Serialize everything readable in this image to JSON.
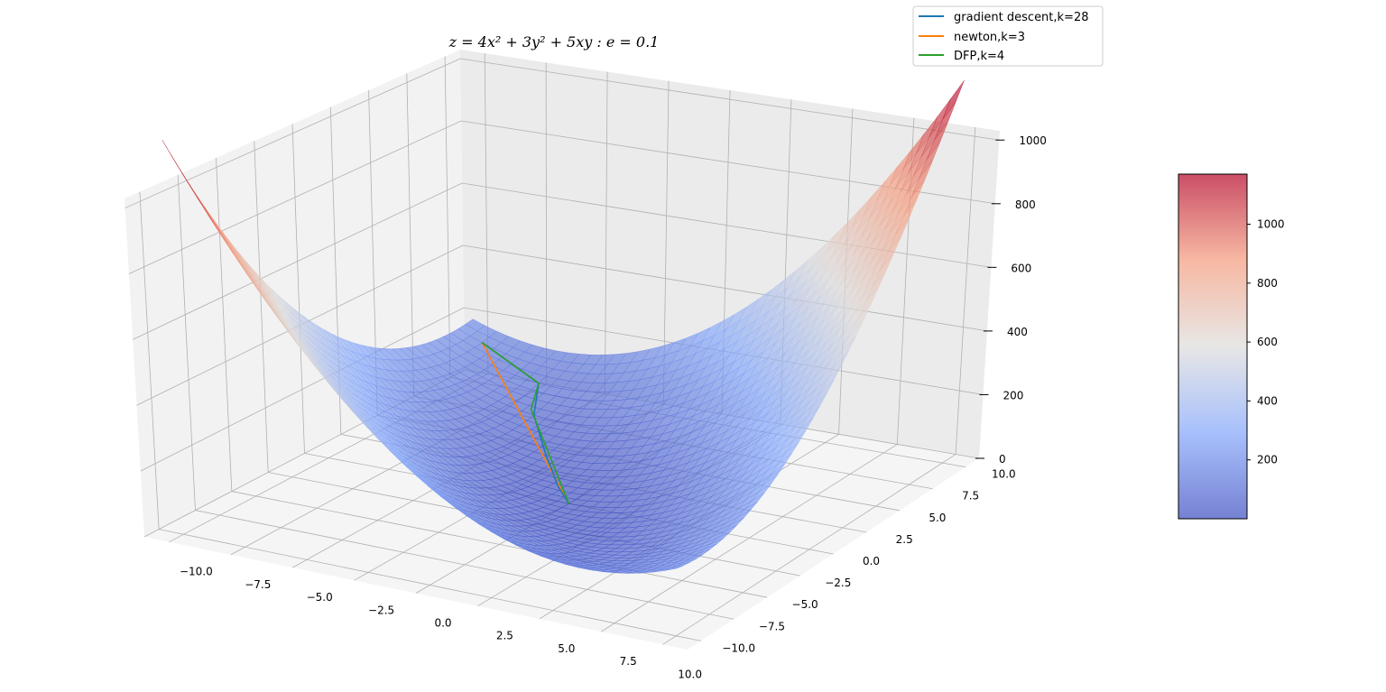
{
  "chart_data": {
    "type": "surface3d",
    "title": "z = 4x² + 3y² + 5xy : e = 0.1",
    "function": "z = 4x^2 + 3y^2 + 5xy",
    "x_range": [
      -10,
      10
    ],
    "y_range": [
      -10,
      10
    ],
    "xlim": [
      -11,
      11
    ],
    "ylim": [
      -11,
      11
    ],
    "zlim": [
      0,
      1029
    ],
    "x_ticks": [
      "−10.0",
      "−7.5",
      "−5.0",
      "−2.5",
      "0.0",
      "2.5",
      "5.0",
      "7.5",
      "10.0"
    ],
    "y_ticks": [
      "−10.0",
      "−7.5",
      "−5.0",
      "−2.5",
      "0.0",
      "2.5",
      "5.0",
      "7.5",
      "10.0"
    ],
    "z_ticks": [
      "0",
      "200",
      "400",
      "600",
      "800",
      "1000"
    ],
    "colormap": "coolwarm",
    "surface_alpha": 0.65,
    "colorbar": {
      "range": [
        0,
        1170
      ],
      "ticks": [
        "200",
        "400",
        "600",
        "800",
        "1000"
      ]
    },
    "grid": true,
    "legend_placement": "top-right",
    "series": [
      {
        "name": "gradient descent,k=28",
        "color": "#1f77b4",
        "points": [
          [
            -9,
            9
          ],
          [
            -6,
            8
          ],
          [
            -5,
            6
          ],
          [
            -3,
            3.5
          ],
          [
            -1.2,
            1.3
          ],
          [
            0,
            0
          ]
        ]
      },
      {
        "name": "newton,k=3",
        "color": "#ff7f0e",
        "points": [
          [
            -9,
            9
          ],
          [
            0,
            0
          ]
        ]
      },
      {
        "name": "DFP,k=4",
        "color": "#2ca02c",
        "points": [
          [
            -9,
            9
          ],
          [
            -6,
            8
          ],
          [
            -5.3,
            6.3
          ],
          [
            0,
            0
          ]
        ]
      }
    ]
  }
}
